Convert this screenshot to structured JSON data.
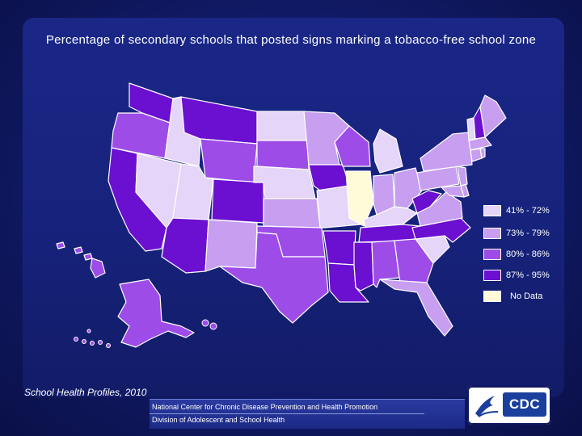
{
  "title": "Percentage of secondary schools that posted signs marking a tobacco-free school zone",
  "colors": {
    "c1": "#e5d5f8",
    "c2": "#c79ef0",
    "c3": "#9d4ce8",
    "c4": "#6b0fd0",
    "nodata": "#fffbd8",
    "border": "#ffffff"
  },
  "legend": [
    {
      "label": "41% - 72%",
      "class": "c1"
    },
    {
      "label": "73% - 79%",
      "class": "c2"
    },
    {
      "label": "80% - 86%",
      "class": "c3"
    },
    {
      "label": "87% - 95%",
      "class": "c4"
    },
    {
      "label": "No Data",
      "class": "nodata"
    }
  ],
  "source": "School Health Profiles, 2010",
  "footer": {
    "line1": "National Center for Chronic Disease Prevention and Health Promotion",
    "line2": "Division of Adolescent and School Health"
  },
  "logo_text": "CDC",
  "states": {
    "WA": "c4",
    "OR": "c3",
    "CA": "c4",
    "ID": "c1",
    "NV": "c1",
    "MT": "c4",
    "WY": "c3",
    "UT": "c1",
    "AZ": "c4",
    "CO": "c4",
    "NM": "c2",
    "ND": "c1",
    "SD": "c3",
    "NE": "c1",
    "KS": "c2",
    "OK": "c3",
    "TX": "c3",
    "MN": "c2",
    "IA": "c4",
    "MO": "c1",
    "AR": "c4",
    "LA": "c4",
    "WI": "c3",
    "IL": "nodata",
    "MI": "c1",
    "IN": "c2",
    "OH": "c2",
    "KY": "c1",
    "TN": "c4",
    "MS": "c4",
    "AL": "c3",
    "GA": "c3",
    "FL": "c2",
    "SC": "c1",
    "NC": "c4",
    "VA": "c2",
    "WV": "c4",
    "MD": "c2",
    "DE": "c2",
    "NJ": "c2",
    "PA": "c2",
    "NY": "c2",
    "CT": "c2",
    "RI": "c2",
    "MA": "c2",
    "VT": "c1",
    "NH": "c4",
    "ME": "c2",
    "AK": "c3",
    "HI": "c3"
  }
}
